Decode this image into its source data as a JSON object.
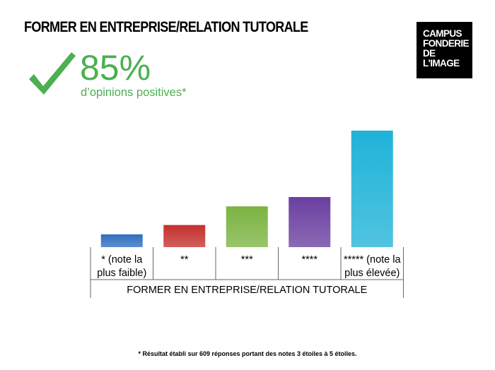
{
  "header": {
    "title": "FORMER EN ENTREPRISE/RELATION TUTORALE"
  },
  "logo": {
    "lines": [
      "CAMPUS",
      "FONDERIE",
      "DE",
      "L'IMAGE"
    ]
  },
  "stat": {
    "value": "85%",
    "label": "d’opinions positives*"
  },
  "chart_data": {
    "type": "bar",
    "categories": [
      [
        "* (note la",
        "plus faible)"
      ],
      [
        "**"
      ],
      [
        "***"
      ],
      [
        "****"
      ],
      [
        "***** (note la",
        "plus élevée)"
      ]
    ],
    "values": [
      11,
      19,
      35,
      43,
      100
    ],
    "colors": [
      "#2f6fc0",
      "#c4312e",
      "#7cb342",
      "#6a3fa0",
      "#1fb3d8"
    ],
    "xlabel": "FORMER EN ENTREPRISE/RELATION TUTORALE",
    "ylabel": "",
    "ylim": [
      0,
      100
    ],
    "grid": false,
    "legend": "none"
  },
  "footnote": "* Résultat établi sur 609 réponses portant des notes 3 étoiles à 5 étoiles."
}
